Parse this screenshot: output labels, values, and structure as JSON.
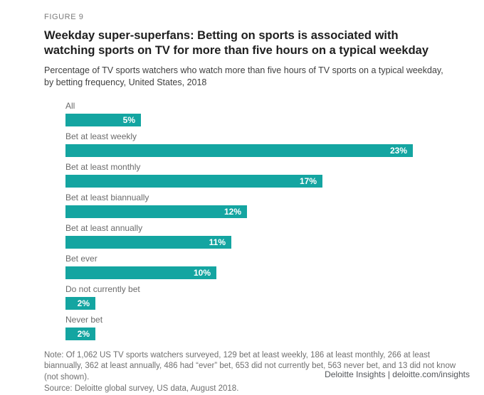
{
  "figure_label": "FIGURE 9",
  "title": "Weekday super-superfans: Betting on sports is associated with watching sports on TV for more than five hours on a typical weekday",
  "subtitle": "Percentage of TV sports watchers who watch more than five hours of TV sports on a typical weekday, by betting frequency, United States, 2018",
  "note": "Note: Of 1,062 US TV sports watchers surveyed, 129 bet at least weekly, 186 at least monthly, 266 at least biannually, 362 at least annually, 486 had “ever” bet, 653 did not currently bet, 563 never bet, and 13 did not know (not shown).",
  "source": "Source: Deloitte global survey, US data, August 2018.",
  "footer": "Deloitte Insights | deloitte.com/insights",
  "colors": {
    "bar": "#14a5a1",
    "bar_value_text": "#ffffff",
    "label_text": "#6b6b6b",
    "title_text": "#1f1f1f",
    "note_text": "#6f6f6f"
  },
  "chart_data": {
    "type": "bar",
    "orientation": "horizontal",
    "title": "Percentage of TV sports watchers who watch more than five hours of TV sports on a typical weekday, by betting frequency, United States, 2018",
    "categories": [
      "All",
      "Bet at least weekly",
      "Bet at least monthly",
      "Bet at least biannually",
      "Bet at least annually",
      "Bet ever",
      "Do not currently bet",
      "Never bet"
    ],
    "values": [
      5,
      23,
      17,
      12,
      11,
      10,
      2,
      2
    ],
    "value_labels": [
      "5%",
      "23%",
      "17%",
      "12%",
      "11%",
      "10%",
      "2%",
      "2%"
    ],
    "xlabel": "",
    "ylabel": "",
    "xlim": [
      0,
      23
    ],
    "grid": false,
    "legend": false,
    "data_labels": "inside-end"
  }
}
